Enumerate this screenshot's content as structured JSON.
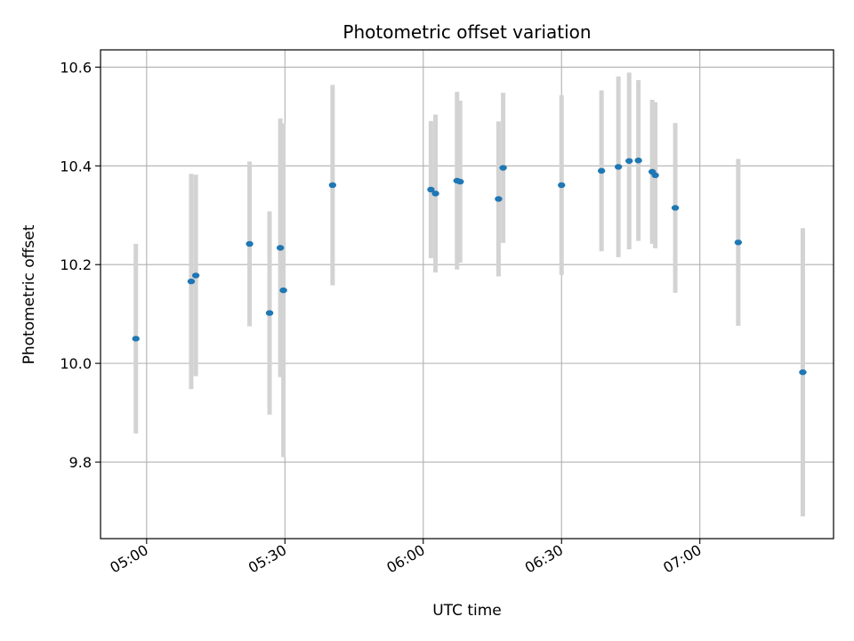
{
  "chart_data": {
    "type": "scatter",
    "title": "Photometric offset variation",
    "xlabel": "UTC time",
    "ylabel": "Photometric offset",
    "x_tick_labels": [
      "05:00",
      "05:30",
      "06:00",
      "06:30",
      "07:00"
    ],
    "x_tick_times": [
      "05:00",
      "05:30",
      "06:00",
      "06:30",
      "07:00"
    ],
    "y_tick_labels": [
      "9.8",
      "10.0",
      "10.2",
      "10.4",
      "10.6"
    ],
    "y_ticks": [
      9.8,
      10.0,
      10.2,
      10.4,
      10.6
    ],
    "xlim": [
      "04:50",
      "07:29"
    ],
    "ylim": [
      9.645,
      10.635
    ],
    "grid": true,
    "colors": {
      "point": "#1f77b4",
      "errorbar": "#d3d3d3",
      "grid": "#b0b0b0"
    },
    "series": [
      {
        "points": [
          {
            "x": "04:57:40",
            "y": 10.05,
            "err": 0.192
          },
          {
            "x": "05:09:40",
            "y": 10.166,
            "err": 0.218
          },
          {
            "x": "05:10:40",
            "y": 10.178,
            "err": 0.204
          },
          {
            "x": "05:22:20",
            "y": 10.242,
            "err": 0.167
          },
          {
            "x": "05:26:40",
            "y": 10.102,
            "err": 0.206
          },
          {
            "x": "05:29:00",
            "y": 10.234,
            "err": 0.262
          },
          {
            "x": "05:29:40",
            "y": 10.148,
            "err": 0.338
          },
          {
            "x": "05:40:20",
            "y": 10.361,
            "err": 0.203
          },
          {
            "x": "06:01:40",
            "y": 10.352,
            "err": 0.139
          },
          {
            "x": "06:02:40",
            "y": 10.344,
            "err": 0.16
          },
          {
            "x": "06:07:20",
            "y": 10.37,
            "err": 0.18
          },
          {
            "x": "06:08:00",
            "y": 10.368,
            "err": 0.164
          },
          {
            "x": "06:16:20",
            "y": 10.333,
            "err": 0.157
          },
          {
            "x": "06:17:20",
            "y": 10.396,
            "err": 0.152
          },
          {
            "x": "06:30:00",
            "y": 10.361,
            "err": 0.182
          },
          {
            "x": "06:38:40",
            "y": 10.39,
            "err": 0.163
          },
          {
            "x": "06:42:20",
            "y": 10.398,
            "err": 0.183
          },
          {
            "x": "06:44:40",
            "y": 10.41,
            "err": 0.179
          },
          {
            "x": "06:46:40",
            "y": 10.411,
            "err": 0.163
          },
          {
            "x": "06:49:40",
            "y": 10.388,
            "err": 0.146
          },
          {
            "x": "06:50:20",
            "y": 10.381,
            "err": 0.148
          },
          {
            "x": "06:54:40",
            "y": 10.315,
            "err": 0.172
          },
          {
            "x": "07:08:20",
            "y": 10.245,
            "err": 0.169
          },
          {
            "x": "07:22:20",
            "y": 9.982,
            "err": 0.292
          }
        ]
      }
    ]
  }
}
